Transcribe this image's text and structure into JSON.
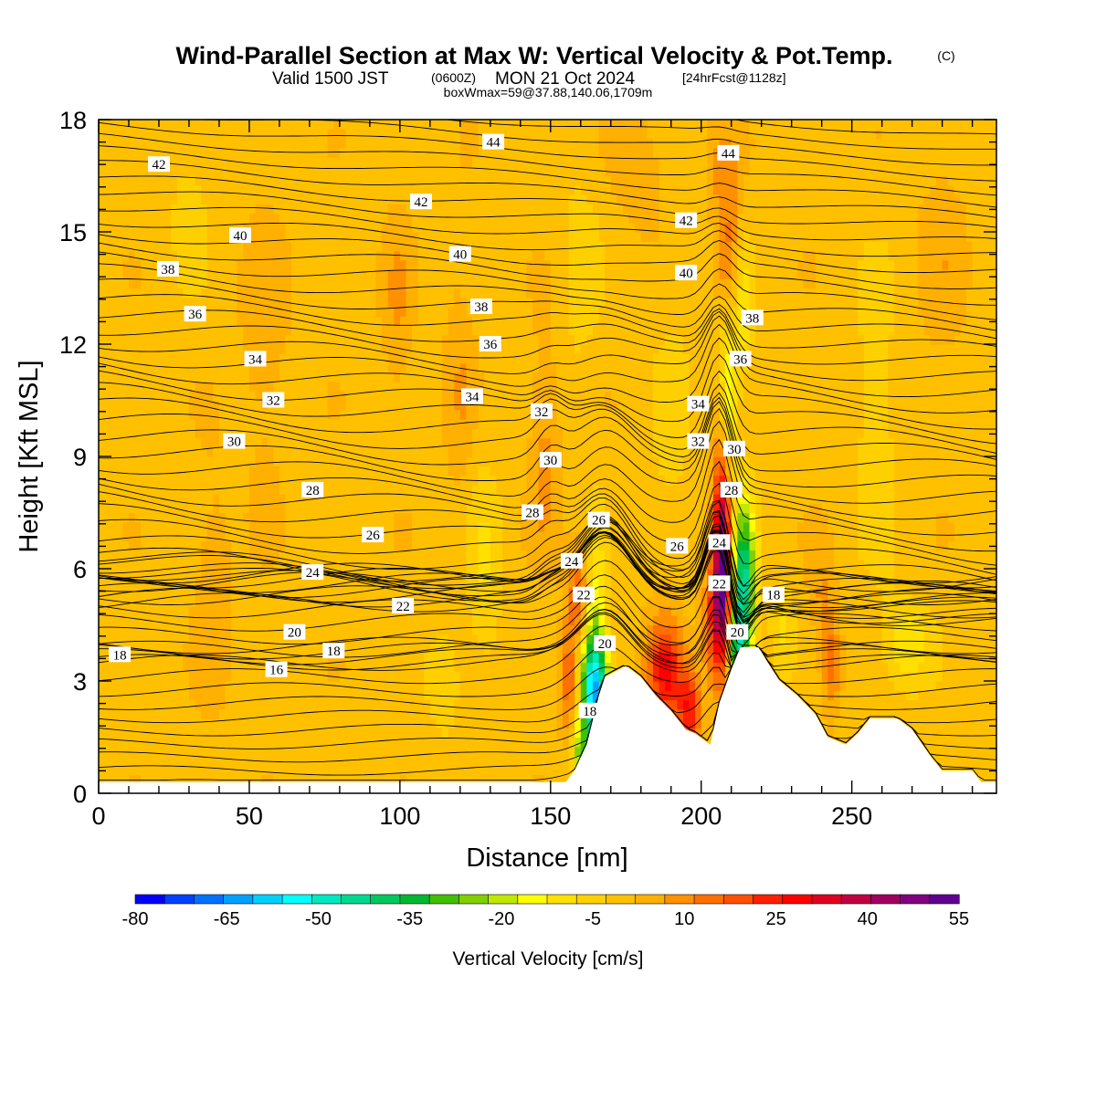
{
  "chart_data": {
    "type": "heatmap",
    "title": "Wind-Parallel Section at Max W: Vertical Velocity & Pot.Temp.",
    "title_mark": "(C)",
    "subtitle": {
      "valid": "Valid 1500 JST",
      "zulu": "(0600Z)",
      "date": "MON 21 Oct 2024",
      "forecast": "[24hrFcst@1128z]"
    },
    "box_info": "boxWmax=59@37.88,140.06,1709m",
    "xlabel": "Distance [nm]",
    "ylabel": "Height [Kft MSL]",
    "xlim": [
      0,
      298
    ],
    "ylim": [
      0,
      18
    ],
    "x_ticks": [
      0,
      50,
      100,
      150,
      200,
      250
    ],
    "y_ticks": [
      0,
      3,
      6,
      9,
      12,
      15,
      18
    ],
    "colorbar": {
      "label": "Vertical Velocity [cm/s]",
      "levels": [
        -80,
        -75,
        -70,
        -65,
        -60,
        -55,
        -50,
        -45,
        -40,
        -35,
        -30,
        -25,
        -20,
        -15,
        -10,
        -5,
        0,
        5,
        10,
        15,
        20,
        25,
        30,
        35,
        40,
        45,
        50,
        55
      ],
      "tick_labels": [
        "-80",
        "-65",
        "-50",
        "-35",
        "-20",
        "-5",
        "10",
        "25",
        "40",
        "55"
      ],
      "colors": [
        "#0000ff",
        "#0040ff",
        "#0070ff",
        "#00a0ff",
        "#00d0ff",
        "#00ffff",
        "#00e8c0",
        "#00d890",
        "#00c860",
        "#00b830",
        "#40c000",
        "#80d000",
        "#c0e800",
        "#ffff00",
        "#ffe000",
        "#ffd000",
        "#ffc000",
        "#ffb000",
        "#ff9000",
        "#ff7000",
        "#ff5000",
        "#ff2000",
        "#ff0000",
        "#e00020",
        "#c00040",
        "#a00060",
        "#800080",
        "#600090"
      ]
    },
    "terrain": [
      [
        0,
        0.3
      ],
      [
        155,
        0.3
      ],
      [
        158,
        0.6
      ],
      [
        162,
        1.3
      ],
      [
        166,
        2.6
      ],
      [
        168,
        3.1
      ],
      [
        175,
        3.4
      ],
      [
        180,
        3.1
      ],
      [
        185,
        2.6
      ],
      [
        190,
        2.2
      ],
      [
        195,
        1.7
      ],
      [
        198,
        1.6
      ],
      [
        203,
        1.3
      ],
      [
        206,
        2.4
      ],
      [
        210,
        3.3
      ],
      [
        213,
        3.9
      ],
      [
        219,
        3.9
      ],
      [
        222,
        3.5
      ],
      [
        226,
        3.0
      ],
      [
        232,
        2.6
      ],
      [
        238,
        2.1
      ],
      [
        242,
        1.5
      ],
      [
        248,
        1.3
      ],
      [
        252,
        1.6
      ],
      [
        256,
        2.0
      ],
      [
        265,
        2.0
      ],
      [
        270,
        1.7
      ],
      [
        276,
        1.0
      ],
      [
        280,
        0.6
      ],
      [
        290,
        0.6
      ],
      [
        293,
        0.3
      ],
      [
        298,
        0.3
      ]
    ],
    "w_blobs": [
      {
        "x": 163,
        "y": 4.4,
        "sx": 5,
        "sy": 2.4,
        "v": -28
      },
      {
        "x": 165,
        "y": 2.6,
        "sx": 4,
        "sy": 1.4,
        "v": -55
      },
      {
        "x": 160,
        "y": 1.1,
        "sx": 3,
        "sy": 0.8,
        "v": -22
      },
      {
        "x": 160,
        "y": 5.2,
        "sx": 4,
        "sy": 1.5,
        "v": 30
      },
      {
        "x": 156,
        "y": 3.0,
        "sx": 3,
        "sy": 1.4,
        "v": 18
      },
      {
        "x": 188,
        "y": 3.3,
        "sx": 6,
        "sy": 1.4,
        "v": 32
      },
      {
        "x": 196,
        "y": 2.2,
        "sx": 4,
        "sy": 1.2,
        "v": 25
      },
      {
        "x": 207,
        "y": 6.5,
        "sx": 3,
        "sy": 2.6,
        "v": 52
      },
      {
        "x": 205,
        "y": 4.6,
        "sx": 4,
        "sy": 1.6,
        "v": 22
      },
      {
        "x": 214,
        "y": 5.6,
        "sx": 4,
        "sy": 2.2,
        "v": -45
      },
      {
        "x": 212,
        "y": 3.8,
        "sx": 3,
        "sy": 1.1,
        "v": -30
      },
      {
        "x": 209,
        "y": 10.5,
        "sx": 3,
        "sy": 2.2,
        "v": -20
      },
      {
        "x": 214,
        "y": 13.0,
        "sx": 3,
        "sy": 1.8,
        "v": -12
      },
      {
        "x": 209,
        "y": 14.5,
        "sx": 4,
        "sy": 1.8,
        "v": 14
      },
      {
        "x": 207,
        "y": 16.8,
        "sx": 5,
        "sy": 1.2,
        "v": 8
      },
      {
        "x": 148,
        "y": 9.2,
        "sx": 5,
        "sy": 2.8,
        "v": 9
      },
      {
        "x": 120,
        "y": 11.0,
        "sx": 5,
        "sy": 3.5,
        "v": 6
      },
      {
        "x": 128,
        "y": 6.0,
        "sx": 6,
        "sy": 3.0,
        "v": -8
      },
      {
        "x": 99,
        "y": 13.0,
        "sx": 5,
        "sy": 2.5,
        "v": 7
      },
      {
        "x": 243,
        "y": 3.5,
        "sx": 3,
        "sy": 1.3,
        "v": 15
      },
      {
        "x": 240,
        "y": 5.2,
        "sx": 4,
        "sy": 1.5,
        "v": 7
      },
      {
        "x": 268,
        "y": 4.0,
        "sx": 8,
        "sy": 1.2,
        "v": -12
      },
      {
        "x": 227,
        "y": 4.5,
        "sx": 4,
        "sy": 1.2,
        "v": -9
      },
      {
        "x": 38,
        "y": 5.5,
        "sx": 6,
        "sy": 3.0,
        "v": 6
      },
      {
        "x": 55,
        "y": 12.0,
        "sx": 8,
        "sy": 4.0,
        "v": 5
      },
      {
        "x": 180,
        "y": 16.5,
        "sx": 8,
        "sy": 1.5,
        "v": 6
      },
      {
        "x": 160,
        "y": 14.0,
        "sx": 6,
        "sy": 2.5,
        "v": -7
      },
      {
        "x": 258,
        "y": 10.0,
        "sx": 8,
        "sy": 4.0,
        "v": -6
      },
      {
        "x": 280,
        "y": 14.5,
        "sx": 8,
        "sy": 3.0,
        "v": 5
      },
      {
        "x": 190,
        "y": 10.0,
        "sx": 6,
        "sy": 3.0,
        "v": -6
      },
      {
        "x": 30,
        "y": 15.5,
        "sx": 6,
        "sy": 2.0,
        "v": -6
      },
      {
        "x": 115,
        "y": 3.0,
        "sx": 6,
        "sy": 1.5,
        "v": -7
      }
    ],
    "theta_contour_labels": [
      {
        "text": "42",
        "x": 20,
        "y": 16.8
      },
      {
        "text": "44",
        "x": 131,
        "y": 17.4
      },
      {
        "text": "44",
        "x": 209,
        "y": 17.1
      },
      {
        "text": "42",
        "x": 107,
        "y": 15.8
      },
      {
        "text": "42",
        "x": 195,
        "y": 15.3
      },
      {
        "text": "40",
        "x": 47,
        "y": 14.9
      },
      {
        "text": "40",
        "x": 120,
        "y": 14.4
      },
      {
        "text": "40",
        "x": 195,
        "y": 13.9
      },
      {
        "text": "38",
        "x": 23,
        "y": 14.0
      },
      {
        "text": "38",
        "x": 127,
        "y": 13.0
      },
      {
        "text": "38",
        "x": 217,
        "y": 12.7
      },
      {
        "text": "36",
        "x": 32,
        "y": 12.8
      },
      {
        "text": "36",
        "x": 130,
        "y": 12.0
      },
      {
        "text": "36",
        "x": 213,
        "y": 11.6
      },
      {
        "text": "34",
        "x": 52,
        "y": 11.6
      },
      {
        "text": "34",
        "x": 124,
        "y": 10.6
      },
      {
        "text": "34",
        "x": 199,
        "y": 10.4
      },
      {
        "text": "32",
        "x": 58,
        "y": 10.5
      },
      {
        "text": "32",
        "x": 147,
        "y": 10.2
      },
      {
        "text": "32",
        "x": 199,
        "y": 9.4
      },
      {
        "text": "30",
        "x": 45,
        "y": 9.4
      },
      {
        "text": "30",
        "x": 150,
        "y": 8.9
      },
      {
        "text": "30",
        "x": 211,
        "y": 9.2
      },
      {
        "text": "28",
        "x": 71,
        "y": 8.1
      },
      {
        "text": "28",
        "x": 144,
        "y": 7.5
      },
      {
        "text": "28",
        "x": 210,
        "y": 8.1
      },
      {
        "text": "26",
        "x": 91,
        "y": 6.9
      },
      {
        "text": "26",
        "x": 166,
        "y": 7.3
      },
      {
        "text": "26",
        "x": 192,
        "y": 6.6
      },
      {
        "text": "24",
        "x": 71,
        "y": 5.9
      },
      {
        "text": "24",
        "x": 157,
        "y": 6.2
      },
      {
        "text": "24",
        "x": 206,
        "y": 6.7
      },
      {
        "text": "22",
        "x": 101,
        "y": 5.0
      },
      {
        "text": "22",
        "x": 161,
        "y": 5.3
      },
      {
        "text": "22",
        "x": 206,
        "y": 5.6
      },
      {
        "text": "20",
        "x": 65,
        "y": 4.3
      },
      {
        "text": "20",
        "x": 168,
        "y": 4.0
      },
      {
        "text": "20",
        "x": 212,
        "y": 4.3
      },
      {
        "text": "18",
        "x": 7,
        "y": 3.7
      },
      {
        "text": "18",
        "x": 78,
        "y": 3.8
      },
      {
        "text": "18",
        "x": 224,
        "y": 5.3
      },
      {
        "text": "18",
        "x": 163,
        "y": 2.2
      },
      {
        "text": "16",
        "x": 59,
        "y": 3.3
      }
    ],
    "grid": false
  }
}
